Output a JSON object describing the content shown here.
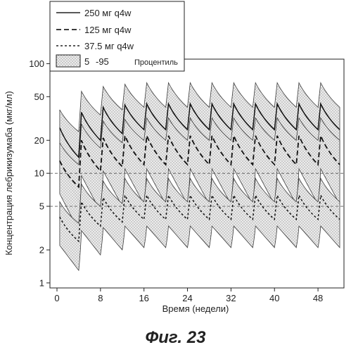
{
  "caption": "Фиг. 23",
  "chart_data": {
    "type": "area",
    "xlabel": "Время (недели)",
    "ylabel": "Концентрация лебрикизумаба (мкг/мл)",
    "xlim": [
      0,
      52
    ],
    "ylim": [
      0.9,
      110
    ],
    "yscale": "log",
    "x_ticks": [
      0,
      8,
      16,
      24,
      32,
      40,
      48
    ],
    "y_ticks": [
      1,
      2,
      5,
      10,
      20,
      50,
      100
    ],
    "reference_lines": [
      10,
      5
    ],
    "dosing_interval_weeks": 4,
    "legend": {
      "position": "top-left",
      "entries": [
        {
          "label": "250 мг  q4w",
          "style": "solid"
        },
        {
          "label": "125 мг  q4w",
          "style": "dashed"
        },
        {
          "label": "37.5 мг  q4w",
          "style": "dotted"
        },
        {
          "label_a": "5",
          "label_b": "-95",
          "label_c": "Процентиль",
          "style": "band"
        }
      ]
    },
    "series": [
      {
        "name": "250 мг q4w",
        "x": [
          0.5,
          4,
          4.5,
          8,
          8.5,
          12,
          12.5,
          16,
          16.5,
          20,
          20.5,
          24,
          24.5,
          28,
          28.5,
          32,
          32.5,
          36,
          36.5,
          40,
          40.5,
          44,
          44.5,
          48,
          48.5,
          52
        ],
        "median": [
          26,
          14,
          36,
          20,
          40,
          23,
          42,
          25,
          43,
          25,
          43,
          25,
          43,
          25,
          43,
          25,
          43,
          25,
          43,
          25,
          43,
          25,
          43,
          25,
          43,
          25
        ],
        "p5": [
          13,
          5.5,
          19,
          8.5,
          21,
          10,
          22,
          10.5,
          22,
          10.5,
          22,
          10.5,
          22,
          10.5,
          22,
          10.5,
          22,
          10.5,
          22,
          10.5,
          22,
          10.5,
          22,
          10.5,
          22,
          10.5
        ],
        "p95": [
          38,
          24,
          56,
          34,
          62,
          38,
          65,
          40,
          67,
          40,
          67,
          40,
          67,
          40,
          67,
          40,
          67,
          40,
          67,
          40,
          67,
          40,
          67,
          40,
          67,
          40
        ]
      },
      {
        "name": "125 мг q4w",
        "x": [
          0.5,
          4,
          4.5,
          8,
          8.5,
          12,
          12.5,
          16,
          16.5,
          20,
          20.5,
          24,
          24.5,
          28,
          28.5,
          32,
          32.5,
          36,
          36.5,
          40,
          40.5,
          44,
          44.5,
          48,
          48.5,
          52
        ],
        "median": [
          13,
          7.5,
          20,
          10.5,
          21,
          11.5,
          22,
          12,
          22,
          12,
          22,
          12,
          22,
          12,
          22,
          12,
          22,
          12,
          22,
          12,
          22,
          12,
          22,
          12,
          22,
          12
        ],
        "p5": [
          6.5,
          3,
          9.5,
          4.5,
          10.5,
          5,
          11,
          5.2,
          11,
          5.2,
          11,
          5.2,
          11,
          5.2,
          11,
          5.2,
          11,
          5.2,
          11,
          5.2,
          11,
          5.2,
          11,
          5.2,
          11,
          5.2
        ],
        "p95": [
          19,
          12,
          28,
          17,
          30,
          19,
          31,
          20,
          32,
          20,
          32,
          20,
          32,
          20,
          32,
          20,
          32,
          20,
          32,
          20,
          32,
          20,
          32,
          20,
          32,
          20
        ]
      },
      {
        "name": "37.5 мг q4w",
        "x": [
          0.5,
          4,
          4.5,
          8,
          8.5,
          12,
          12.5,
          16,
          16.5,
          20,
          20.5,
          24,
          24.5,
          28,
          28.5,
          32,
          32.5,
          36,
          36.5,
          40,
          40.5,
          44,
          44.5,
          48,
          48.5,
          52
        ],
        "median": [
          4,
          2.4,
          5.5,
          3.3,
          6,
          3.6,
          6.3,
          3.8,
          6.3,
          3.8,
          6.3,
          3.8,
          6.3,
          3.8,
          6.3,
          3.8,
          6.3,
          3.8,
          6.3,
          3.8,
          6.3,
          3.8,
          6.3,
          3.8,
          6.3,
          3.8
        ],
        "p5": [
          2.2,
          1.3,
          3,
          1.8,
          3.2,
          2,
          3.3,
          2.1,
          3.3,
          2.1,
          3.3,
          2.1,
          3.3,
          2.1,
          3.3,
          2.1,
          3.3,
          2.1,
          3.3,
          2.1,
          3.3,
          2.1,
          3.3,
          2.1,
          3.3,
          2.1
        ],
        "p95": [
          5.5,
          3.5,
          8,
          5,
          8.5,
          5.3,
          9,
          5.5,
          9,
          5.5,
          9,
          5.5,
          9,
          5.5,
          9,
          5.5,
          9,
          5.5,
          9,
          5.5,
          9,
          5.5,
          9,
          5.5,
          9,
          5.5
        ]
      }
    ]
  }
}
